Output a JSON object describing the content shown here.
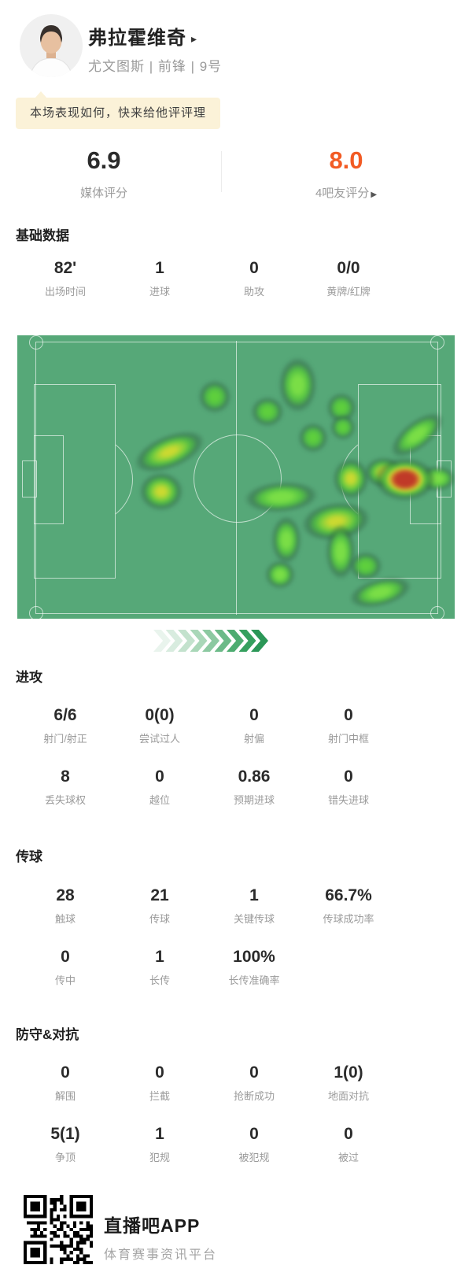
{
  "player": {
    "name": "弗拉霍维奇",
    "name_arrow": "▸",
    "meta": "尤文图斯 | 前锋 | 9号"
  },
  "banner": {
    "text": "本场表现如何，快来给他评评理"
  },
  "ratings": {
    "media": {
      "value": "6.9",
      "label": "媒体评分"
    },
    "fans": {
      "value": "8.0",
      "label": "4吧友评分",
      "arrow": "▶",
      "accent_color": "#f25b24"
    }
  },
  "sections": [
    {
      "title": "基础数据",
      "stats": [
        {
          "value": "82'",
          "label": "出场时间"
        },
        {
          "value": "1",
          "label": "进球"
        },
        {
          "value": "0",
          "label": "助攻"
        },
        {
          "value": "0/0",
          "label": "黄牌/红牌"
        }
      ]
    },
    {
      "title": "进攻",
      "stats": [
        {
          "value": "6/6",
          "label": "射门/射正"
        },
        {
          "value": "0(0)",
          "label": "尝试过人"
        },
        {
          "value": "0",
          "label": "射偏"
        },
        {
          "value": "0",
          "label": "射门中框"
        },
        {
          "value": "8",
          "label": "丢失球权"
        },
        {
          "value": "0",
          "label": "越位"
        },
        {
          "value": "0.86",
          "label": "预期进球"
        },
        {
          "value": "0",
          "label": "错失进球"
        }
      ]
    },
    {
      "title": "传球",
      "stats": [
        {
          "value": "28",
          "label": "触球"
        },
        {
          "value": "21",
          "label": "传球"
        },
        {
          "value": "1",
          "label": "关键传球"
        },
        {
          "value": "66.7%",
          "label": "传球成功率"
        },
        {
          "value": "0",
          "label": "传中"
        },
        {
          "value": "1",
          "label": "长传"
        },
        {
          "value": "100%",
          "label": "长传准确率"
        }
      ]
    },
    {
      "title": "防守&对抗",
      "stats": [
        {
          "value": "0",
          "label": "解围"
        },
        {
          "value": "0",
          "label": "拦截"
        },
        {
          "value": "0",
          "label": "抢断成功"
        },
        {
          "value": "1(0)",
          "label": "地面对抗"
        },
        {
          "value": "5(1)",
          "label": "争顶"
        },
        {
          "value": "1",
          "label": "犯规"
        },
        {
          "value": "0",
          "label": "被犯规"
        },
        {
          "value": "0",
          "label": "被过"
        }
      ]
    }
  ],
  "heatmap": {
    "colors": {
      "pitch": "#56a878",
      "line": "rgba(255,255,255,0.62)",
      "green": "#5ecf3d",
      "bright": "#7ade46",
      "yellow": "#cbd931",
      "red": "#c03a28",
      "halo": "rgba(40,86,58,0.45)"
    },
    "blobs": [
      [
        251,
        78,
        13,
        13,
        0,
        "green"
      ],
      [
        356,
        63,
        15,
        22,
        0,
        "bright"
      ],
      [
        318,
        97,
        13,
        12,
        0,
        "green"
      ],
      [
        412,
        92,
        12,
        12,
        0,
        "green"
      ],
      [
        414,
        117,
        10,
        10,
        0,
        "green"
      ],
      [
        376,
        130,
        12,
        12,
        0,
        "green"
      ],
      [
        193,
        148,
        29,
        13,
        -22,
        "yellow"
      ],
      [
        508,
        127,
        25,
        11,
        -38,
        "bright"
      ],
      [
        183,
        198,
        17,
        15,
        0,
        "yellow"
      ],
      [
        335,
        205,
        29,
        12,
        -4,
        "bright"
      ],
      [
        405,
        236,
        27,
        15,
        -8,
        "yellow"
      ],
      [
        424,
        182,
        14,
        16,
        0,
        "yellow"
      ],
      [
        342,
        260,
        12,
        19,
        0,
        "bright"
      ],
      [
        334,
        304,
        12,
        11,
        0,
        "bright"
      ],
      [
        411,
        275,
        12,
        22,
        0,
        "bright"
      ],
      [
        443,
        293,
        13,
        11,
        0,
        "green"
      ],
      [
        461,
        327,
        25,
        11,
        -14,
        "bright"
      ],
      [
        465,
        174,
        15,
        12,
        0,
        "yellow"
      ],
      [
        533,
        182,
        15,
        10,
        0,
        "bright"
      ],
      [
        493,
        183,
        24,
        17,
        0,
        "red"
      ]
    ]
  },
  "chevrons": {
    "colors": [
      "#e9f4ed",
      "#d8ecdf",
      "#c3e2cd",
      "#a9d7b8",
      "#8cc9a1",
      "#6cba88",
      "#4dac70",
      "#35a05e",
      "#2b9757"
    ]
  },
  "footer": {
    "app_name": "直播吧APP",
    "slogan": "体育赛事资讯平台"
  }
}
